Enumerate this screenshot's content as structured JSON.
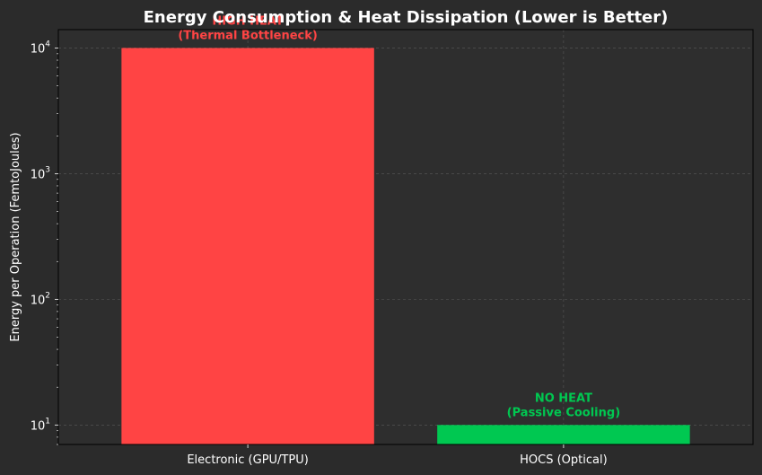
{
  "chart_data": {
    "type": "bar",
    "title": "Energy Consumption & Heat Dissipation (Lower is Better)",
    "xlabel": "",
    "ylabel": "Energy per Operation (FemtoJoules)",
    "yscale": "log",
    "ylim": [
      7,
      14000
    ],
    "yticks": [
      {
        "value": 10,
        "base": "10",
        "exp": "1"
      },
      {
        "value": 100,
        "base": "10",
        "exp": "2"
      },
      {
        "value": 1000,
        "base": "10",
        "exp": "3"
      },
      {
        "value": 10000,
        "base": "10",
        "exp": "4"
      }
    ],
    "grid": true,
    "categories": [
      "Electronic (GPU/TPU)",
      "HOCS (Optical)"
    ],
    "values": [
      10000,
      10
    ],
    "bar_colors": [
      "#ff4444",
      "#00c851"
    ],
    "annotations": [
      {
        "category": "Electronic (GPU/TPU)",
        "lines": [
          "HIGH HEAT",
          "(Thermal Bottleneck)"
        ],
        "color": "#ff4444"
      },
      {
        "category": "HOCS (Optical)",
        "lines": [
          "NO HEAT",
          "(Passive Cooling)"
        ],
        "color": "#00c851"
      }
    ],
    "colors": {
      "figure_bg": "#2b2b2b",
      "axes_bg": "#2e2e2e",
      "text": "#ffffff",
      "grid": "#5a5a5a"
    }
  }
}
